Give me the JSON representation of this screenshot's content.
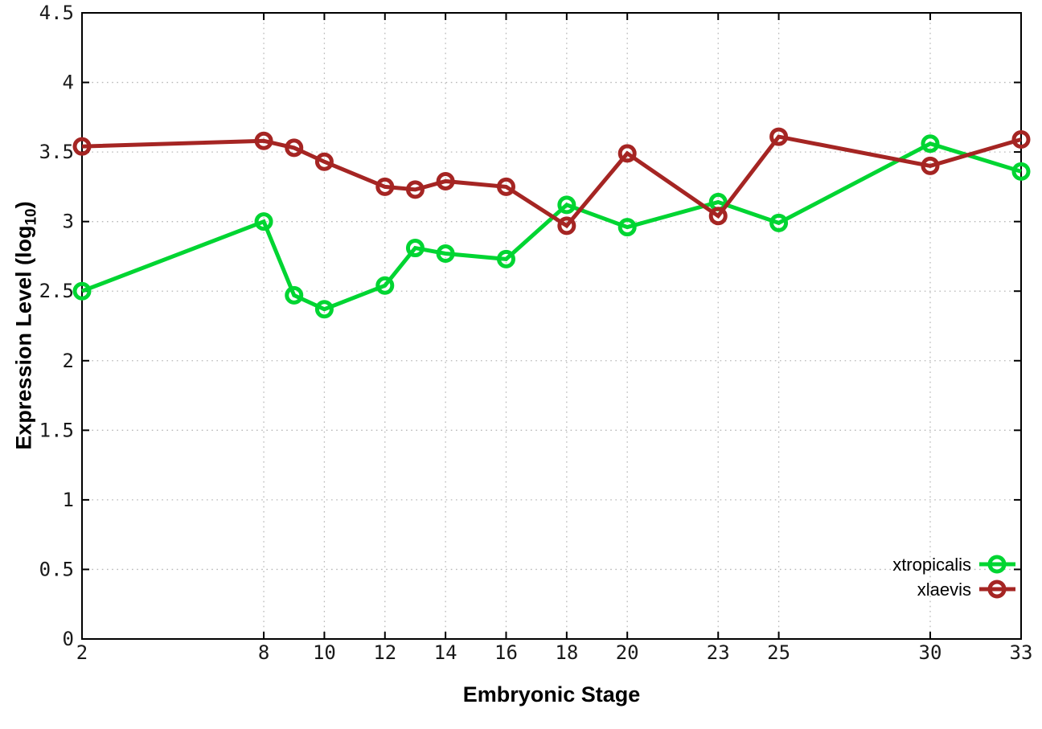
{
  "figure": {
    "background": "#ffffff"
  },
  "chart_data": {
    "type": "line",
    "title": "",
    "xlabel": "Embryonic Stage",
    "ylabel": "Expression Level (log10)",
    "ylabel_parts": {
      "main": "Expression Level (log",
      "sub": "10",
      "close": ")"
    },
    "x": [
      2,
      8,
      9,
      10,
      12,
      13,
      14,
      16,
      18,
      20,
      23,
      25,
      30,
      33
    ],
    "series": [
      {
        "name": "xtropicalis",
        "color": "#00d532",
        "marker": "open-circle",
        "values": [
          2.5,
          3.0,
          2.47,
          2.37,
          2.54,
          2.81,
          2.77,
          2.73,
          3.12,
          2.96,
          3.14,
          2.99,
          3.56,
          3.36
        ]
      },
      {
        "name": "xlaevis",
        "color": "#a52523",
        "marker": "open-circle",
        "values": [
          3.54,
          3.58,
          3.53,
          3.43,
          3.25,
          3.23,
          3.29,
          3.25,
          2.97,
          3.49,
          3.04,
          3.61,
          3.4,
          3.59
        ]
      }
    ],
    "xticks": [
      2,
      8,
      10,
      12,
      14,
      16,
      18,
      20,
      23,
      25,
      30,
      33
    ],
    "yticks": [
      0,
      0.5,
      1,
      1.5,
      2,
      2.5,
      3,
      3.5,
      4,
      4.5
    ],
    "xlim": [
      2,
      33
    ],
    "ylim": [
      0,
      4.5
    ],
    "grid": true,
    "grid_style": "dotted",
    "grid_color": "#b8b8b8",
    "axis_color": "#000000",
    "tick_label_color": "#1a1a1a",
    "legend_position": "bottom-right",
    "legend_labels": [
      "xtropicalis",
      "xlaevis"
    ]
  }
}
